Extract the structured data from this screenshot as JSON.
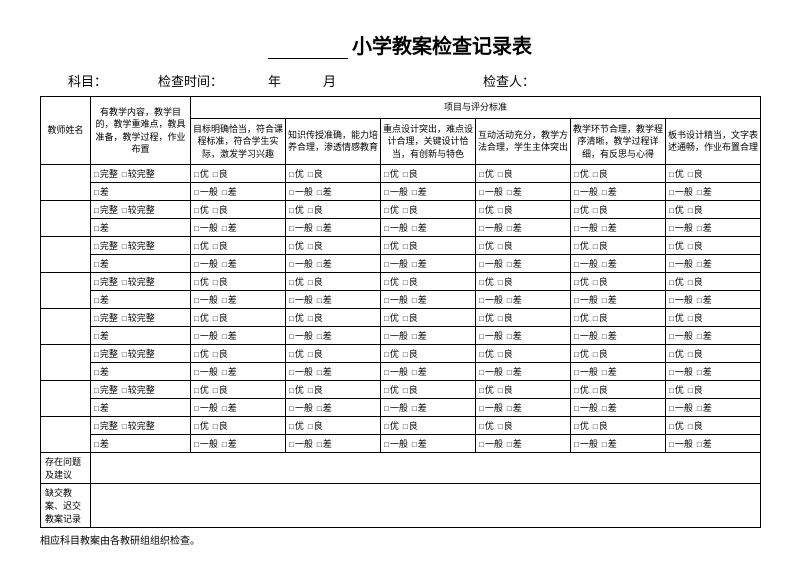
{
  "title_prefix_blank": "________",
  "title_text": "小学教案检查记录表",
  "header": {
    "subject_label": "科目：",
    "check_time_label": "检查时间：",
    "year_label": "年",
    "month_label": "月",
    "checker_label": "检查人："
  },
  "table": {
    "teacher_name_header": "教师姓名",
    "criteria_group_header": "项目与评分标准",
    "plan_content_header": "有教学内容，教学目的，教学重难点，教具准备，教学过程，作业布置",
    "criteria_headers": [
      "目标明确恰当，符合课程标准，符合学生实际，激发学习兴趣",
      "知识传授准确，能力培养合理，渗透情感教育",
      "重点设计突出，难点设计合理，关键设计恰当，有创新与特色",
      "互动活动充分，教学方法合理，学生主体突出",
      "教学环节合理，教学程序清晰，教学过程详细，有反思与心得",
      "板书设计精当，文字表述通畅，作业布置合理"
    ],
    "plan_options": {
      "row1": [
        "完整",
        "较完整"
      ],
      "row2": [
        "差"
      ]
    },
    "crit_options": {
      "row1": [
        "优",
        "良"
      ],
      "row2": [
        "一般",
        "差"
      ]
    },
    "num_body_rows": 8,
    "bottom_rows": [
      "存在问题及建议",
      "缺交教案、迟交教案记录"
    ]
  },
  "footer_note": "相应科目教案由各教研组组织检查。",
  "checkbox_glyph": "□"
}
